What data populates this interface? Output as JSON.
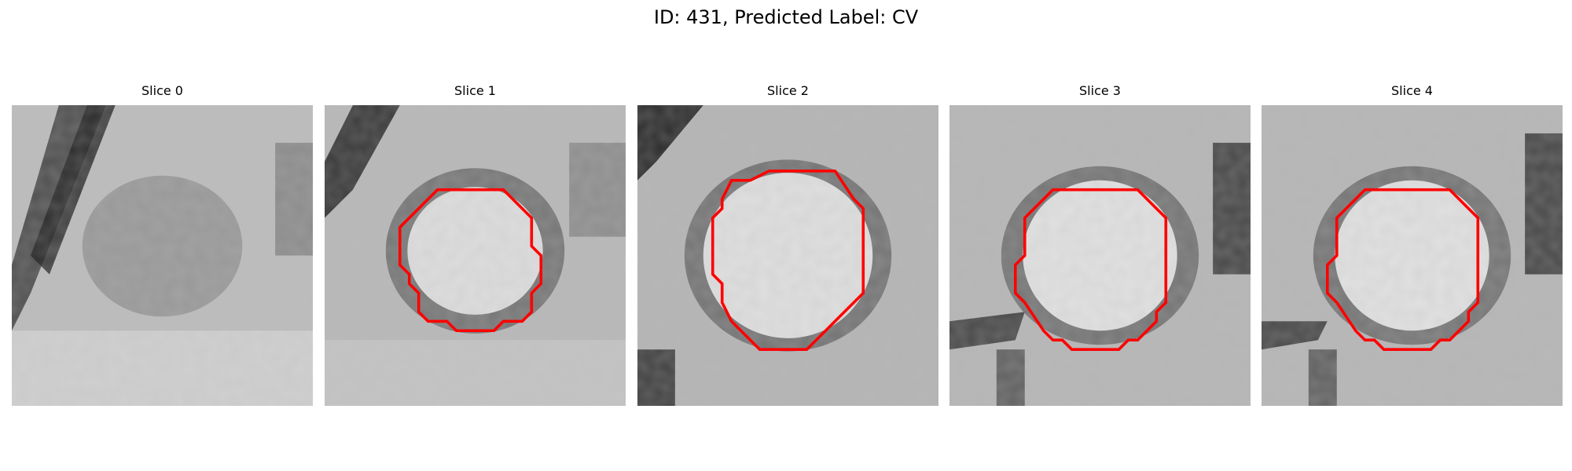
{
  "figure": {
    "title": "ID: 431, Predicted Label: CV"
  },
  "panels": [
    {
      "title": "Slice 0",
      "has_contour": false
    },
    {
      "title": "Slice 1",
      "has_contour": true
    },
    {
      "title": "Slice 2",
      "has_contour": true
    },
    {
      "title": "Slice 3",
      "has_contour": true
    },
    {
      "title": "Slice 4",
      "has_contour": true
    }
  ],
  "colors": {
    "contour": "#ff0000",
    "background": "#ffffff"
  },
  "image": {
    "colormap": "grayscale",
    "pixel_grid": "32x32"
  }
}
